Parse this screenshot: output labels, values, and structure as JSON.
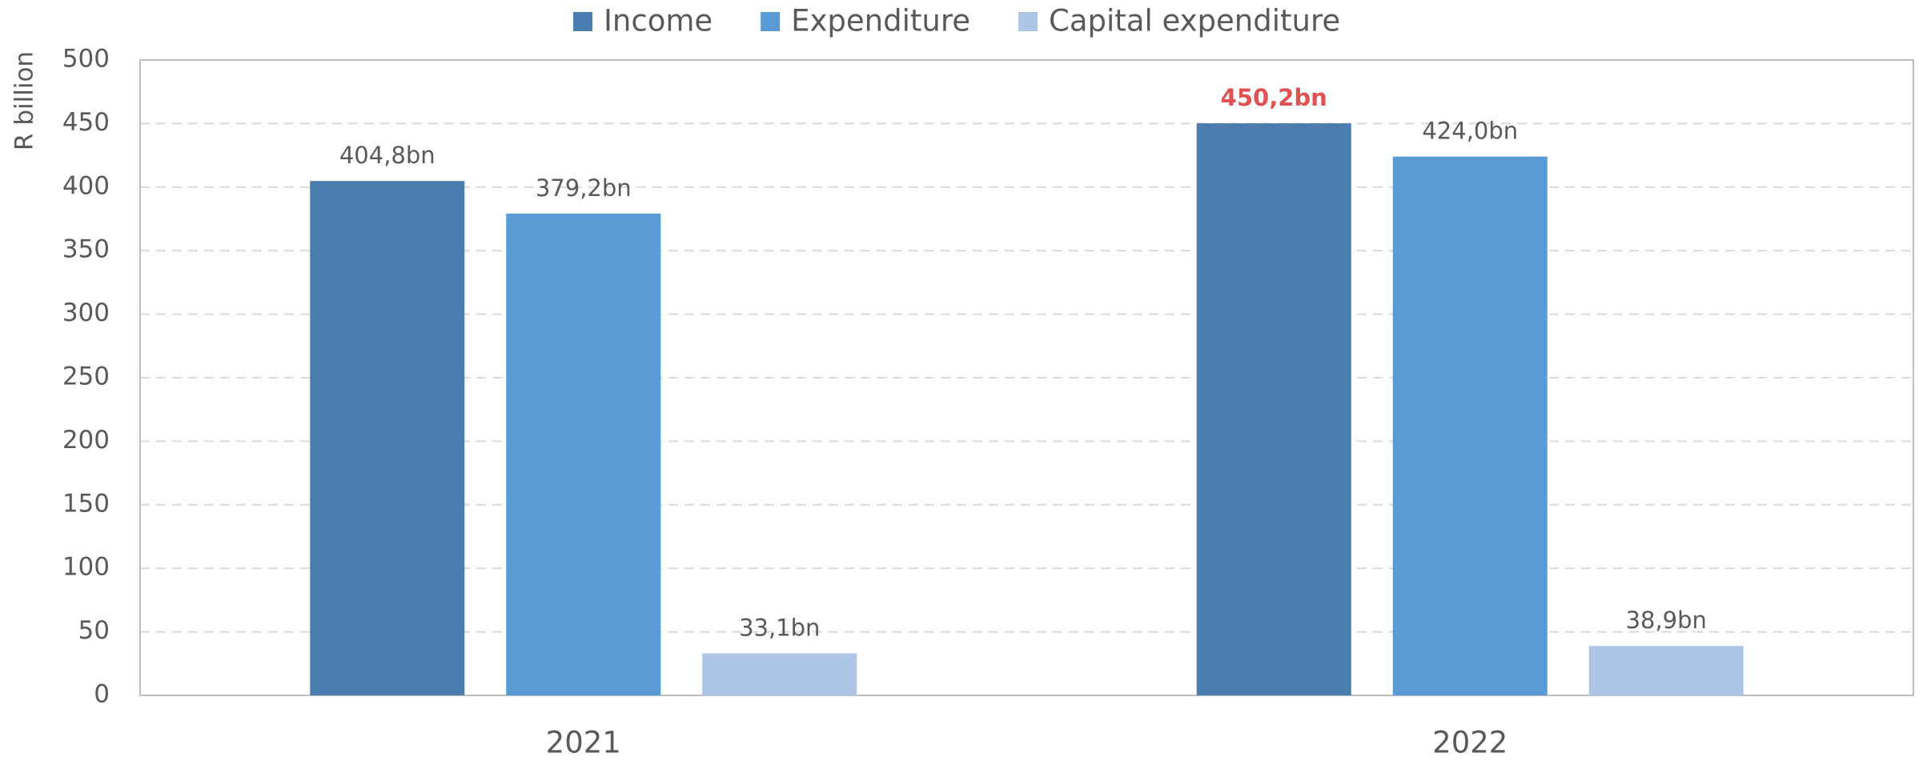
{
  "chart_data": {
    "type": "bar",
    "y_label": "R billion",
    "categories": [
      "2021",
      "2022"
    ],
    "series": [
      {
        "name": "Income",
        "color": "#4a7eaf",
        "values": [
          404.8,
          450.2
        ],
        "value_labels": [
          "404,8bn",
          "450,2bn"
        ]
      },
      {
        "name": "Expenditure",
        "color": "#5a9bd5",
        "values": [
          379.2,
          424.0
        ],
        "value_labels": [
          "379,2bn",
          "424,0bn"
        ]
      },
      {
        "name": "Capital expenditure",
        "color": "#adc6e5",
        "values": [
          33.1,
          38.9
        ],
        "value_labels": [
          "33,1bn",
          "38,9bn"
        ]
      }
    ],
    "ylim": [
      0,
      500
    ],
    "yticks": [
      0,
      50,
      100,
      150,
      200,
      250,
      300,
      350,
      400,
      450,
      500
    ],
    "grid": true,
    "legend": "top",
    "highlight": {
      "series": 0,
      "index": 1,
      "color": "#e05252"
    }
  }
}
